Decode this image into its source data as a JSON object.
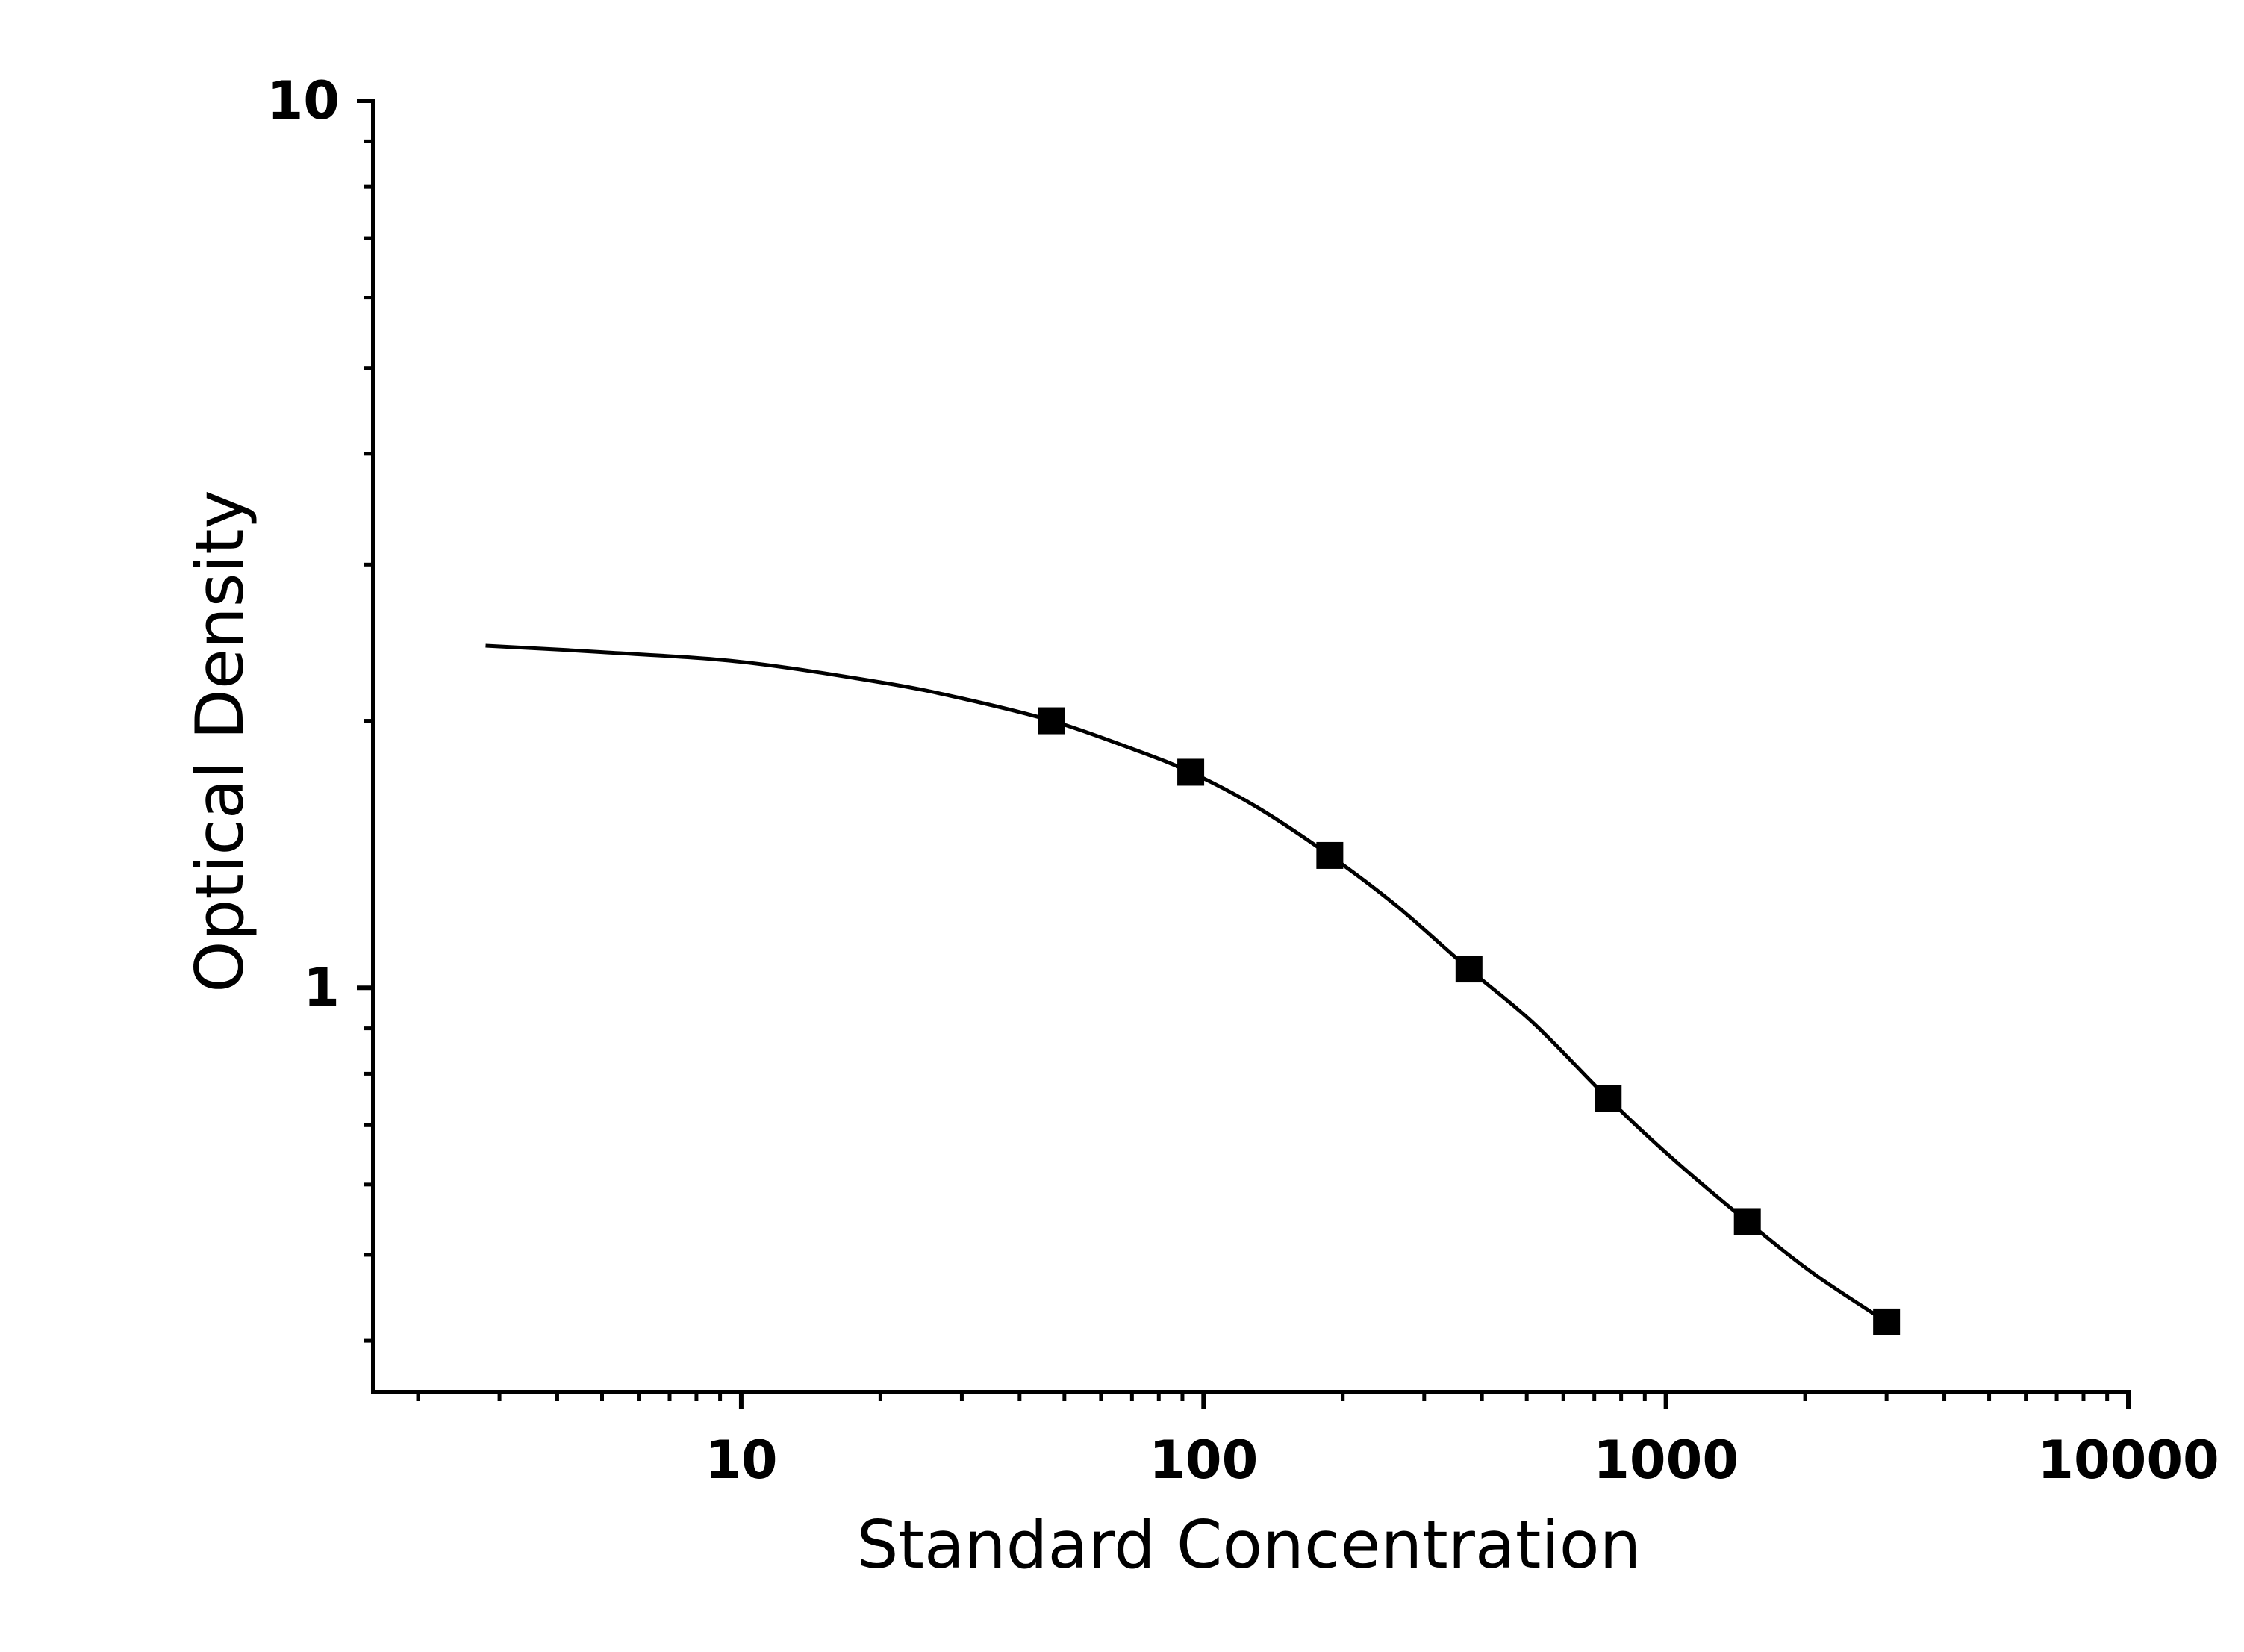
{
  "chart_data": {
    "type": "scatter",
    "title": "",
    "xlabel": "Standard Concentration",
    "ylabel": "Optical Density",
    "x_scale": "log",
    "y_scale": "log",
    "xlim": [
      1.6,
      10000
    ],
    "ylim": [
      0.35,
      10
    ],
    "x_ticks": [
      {
        "value": 10,
        "label": "10"
      },
      {
        "value": 100,
        "label": "100"
      },
      {
        "value": 1000,
        "label": "1000"
      },
      {
        "value": 10000,
        "label": "10000"
      }
    ],
    "y_ticks": [
      {
        "value": 1,
        "label": "1"
      },
      {
        "value": 10,
        "label": "10"
      }
    ],
    "grid": false,
    "legend": "none",
    "colors": {
      "line": "#000000",
      "marker": "#000000"
    },
    "marker_shape": "square",
    "series": [
      {
        "x": [
          46.9,
          93.8,
          187.5,
          375,
          750,
          1500,
          3000
        ],
        "y": [
          2.0,
          1.75,
          1.41,
          1.05,
          0.75,
          0.545,
          0.42
        ]
      }
    ],
    "fit_curve": {
      "model": "4PL",
      "x": [
        2.8,
        5,
        10,
        20,
        30,
        46.9,
        70,
        93.8,
        130,
        187.5,
        260,
        375,
        520,
        750,
        1040,
        1500,
        2100,
        3000
      ],
      "y": [
        2.43,
        2.39,
        2.33,
        2.21,
        2.12,
        2.0,
        1.86,
        1.75,
        1.6,
        1.41,
        1.24,
        1.05,
        0.91,
        0.75,
        0.64,
        0.545,
        0.475,
        0.42
      ]
    }
  }
}
